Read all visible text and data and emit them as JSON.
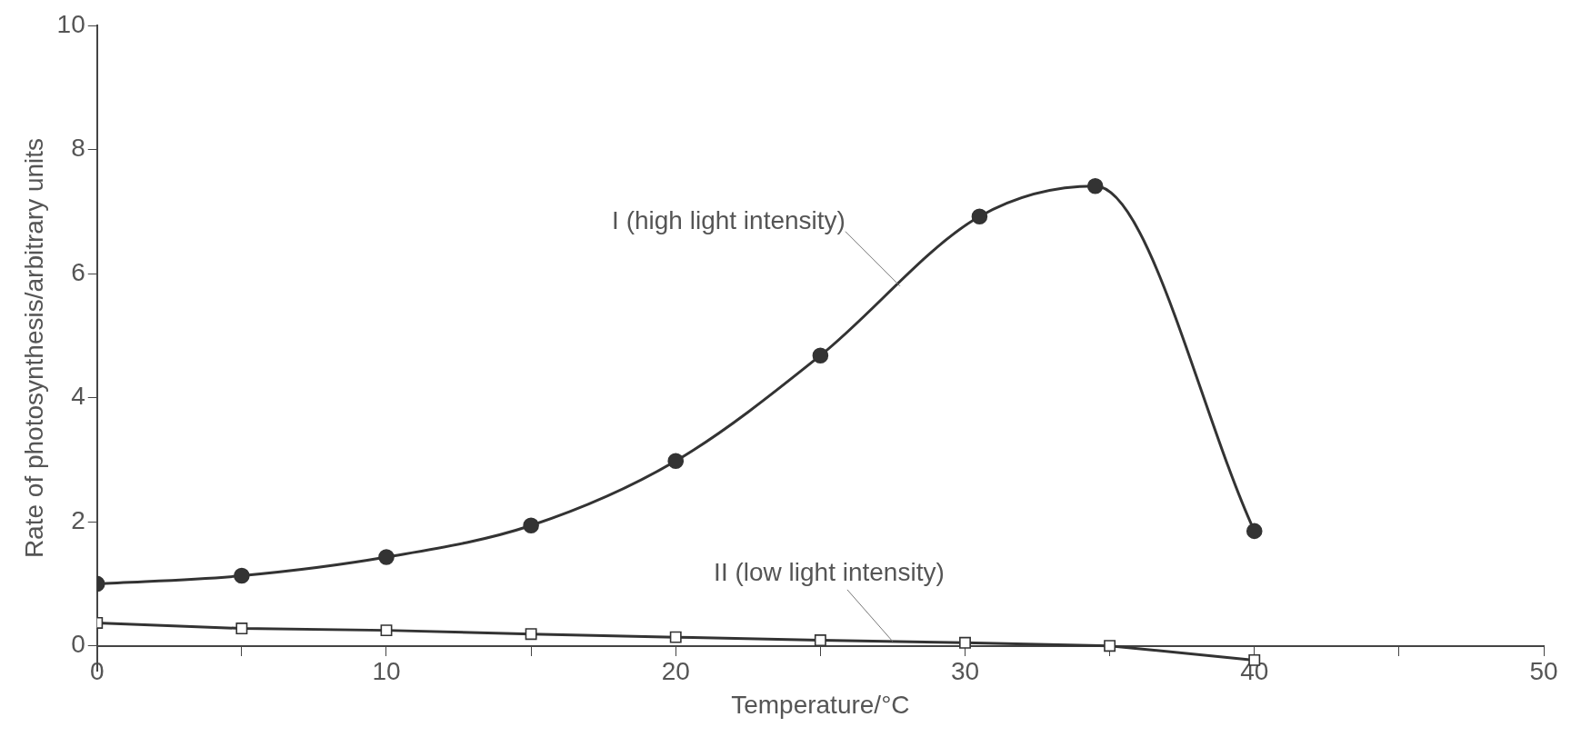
{
  "chart_data": {
    "type": "line",
    "xlabel": "Temperature/°C",
    "ylabel": "Rate of photosynthesis/arbitrary units",
    "xlim": [
      0,
      50
    ],
    "xticks": [
      0,
      {
        "value": 5,
        "label": null
      },
      10,
      {
        "value": 15,
        "label": null
      },
      20,
      {
        "value": 25,
        "label": null
      },
      30,
      {
        "value": 35,
        "label": null
      },
      40,
      {
        "value": 45,
        "label": null
      },
      50
    ],
    "ylim": [
      -0.4,
      10
    ],
    "yticks": [
      0,
      2,
      4,
      6,
      8,
      10
    ],
    "grid": false,
    "legend": false,
    "series": [
      {
        "name": "I (high light intensity)",
        "color": "#333333",
        "marker": "circle",
        "x": [
          0,
          5,
          10,
          15,
          20,
          25,
          30.5,
          34.5,
          40
        ],
        "values": [
          1.0,
          1.13,
          1.43,
          1.94,
          2.98,
          4.68,
          6.92,
          7.41,
          1.85
        ]
      },
      {
        "name": "II (low light intensity)",
        "color": "#333333",
        "marker": "square",
        "x": [
          0,
          5,
          10,
          15,
          20,
          25,
          30,
          35,
          40
        ],
        "values": [
          0.37,
          0.28,
          0.25,
          0.19,
          0.14,
          0.09,
          0.05,
          0.0,
          -0.23
        ]
      }
    ]
  }
}
